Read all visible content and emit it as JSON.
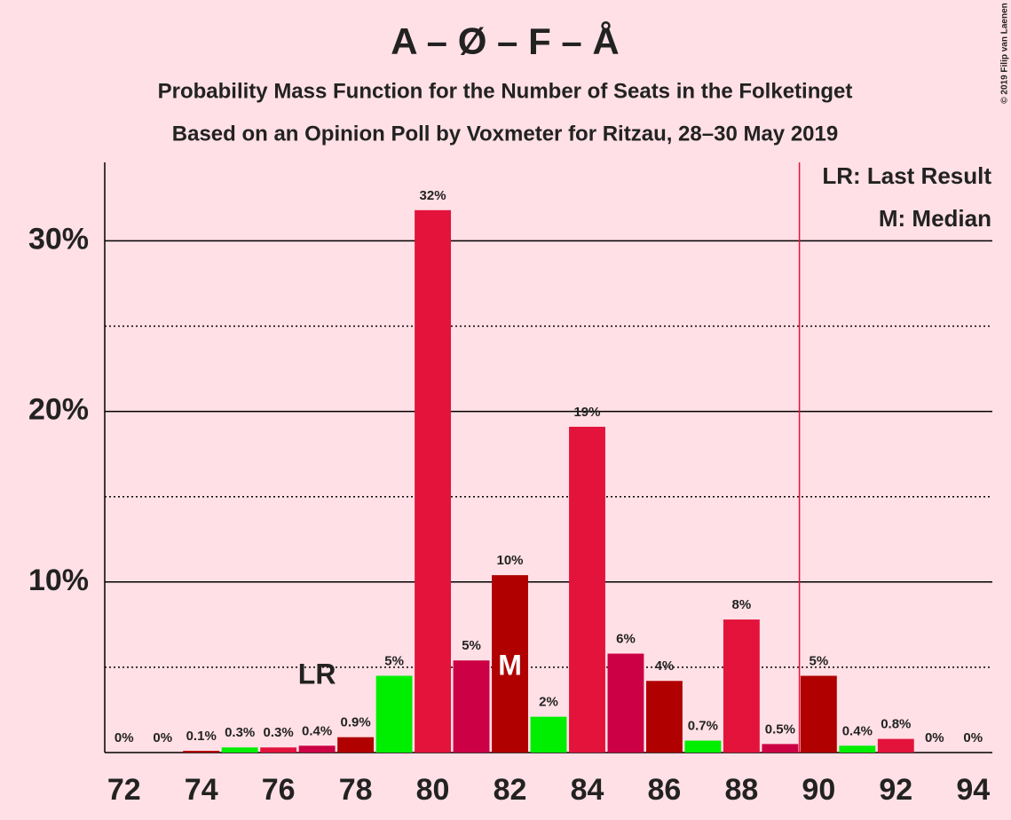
{
  "chart_data": {
    "type": "bar",
    "title": "A – Ø – F – Å",
    "subtitle": "Probability Mass Function for the Number of Seats in the Folketinget",
    "subtitle2": "Based on an Opinion Poll by Voxmeter for Ritzau, 28–30 May 2019",
    "copyright": "© 2019 Filip van Laenen",
    "x": [
      72,
      73,
      74,
      75,
      76,
      77,
      78,
      79,
      80,
      81,
      82,
      83,
      84,
      85,
      86,
      87,
      88,
      89,
      90,
      91,
      92,
      93,
      94
    ],
    "values": [
      0,
      0,
      0.1,
      0.3,
      0.3,
      0.4,
      0.9,
      4.5,
      31.8,
      5.4,
      10.4,
      2.1,
      19.1,
      5.8,
      4.2,
      0.7,
      7.8,
      0.5,
      4.5,
      0.4,
      0.8,
      0,
      0
    ],
    "value_labels": [
      "0%",
      "0%",
      "0.1%",
      "0.3%",
      "0.3%",
      "0.4%",
      "0.9%",
      "5%",
      "32%",
      "5%",
      "10%",
      "2%",
      "19%",
      "6%",
      "4%",
      "0.7%",
      "8%",
      "0.5%",
      "5%",
      "0.4%",
      "0.8%",
      "0%",
      "0%"
    ],
    "colors": [
      "#e3133c",
      "#cc0044",
      "#b00000",
      "#00ee00",
      "#e3133c",
      "#cc0044",
      "#b00000",
      "#00ee00",
      "#e3133c",
      "#cc0044",
      "#b00000",
      "#00ee00",
      "#e3133c",
      "#cc0044",
      "#b00000",
      "#00ee00",
      "#e3133c",
      "#cc0044",
      "#b00000",
      "#00ee00",
      "#e3133c",
      "#cc0044",
      "#b00000"
    ],
    "xlim": [
      71.5,
      94.5
    ],
    "xticks": [
      72,
      74,
      76,
      78,
      80,
      82,
      84,
      86,
      88,
      90,
      92,
      94
    ],
    "ylim": [
      0,
      34.6
    ],
    "yticks": [
      {
        "value": 10,
        "label": "10%"
      },
      {
        "value": 20,
        "label": "20%"
      },
      {
        "value": 30,
        "label": "30%"
      }
    ],
    "minor_yticks": [
      5,
      15,
      25
    ],
    "grid": true,
    "majority_line": 89.5,
    "majority_color": "#e3133c",
    "last_result": {
      "seat": 77,
      "label": "LR"
    },
    "median": {
      "seat": 82,
      "label": "M"
    },
    "legend": [
      "LR: Last Result",
      "M: Median"
    ]
  }
}
